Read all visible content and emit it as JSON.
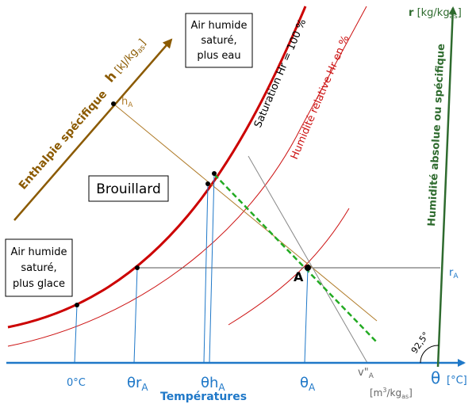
{
  "colors": {
    "saturation": "#cc0000",
    "humidity_curves": "#cc1111",
    "temperature_axis": "#1f78c8",
    "enthalpy_axis": "#8b5a00",
    "humidity_axis": "#2e6b2e",
    "dew_line": "#22aa22",
    "volume_line": "#888888",
    "construction": "#555555"
  },
  "labels": {
    "theta": "θ",
    "theta_unit": "[°C]",
    "temperatures": "Températures",
    "zero_c": "0°C",
    "theta_r": "θr",
    "theta_r_sub": "A",
    "theta_h": "θh",
    "theta_h_sub": "A",
    "theta_a": "θ",
    "theta_a_sub": "A",
    "v_label": "v\"",
    "v_sub": "A",
    "v_unit_open": "[m",
    "v_unit_sup": "3",
    "v_unit_mid": "/kg",
    "v_unit_sub": "as",
    "v_unit_close": "]",
    "r_symbol": "r",
    "r_unit_open": "[kg/kg",
    "r_unit_sub": "as",
    "r_unit_close": "]",
    "r_a": "r",
    "r_a_sub": "A",
    "humidity_axis_title": "Humidité absolue ou spécifique",
    "h_symbol": "h",
    "h_unit_open": "[kJ/kg",
    "h_unit_sub": "as",
    "h_unit_close": "]",
    "enthalpy_title": "Enthalpie spécifique",
    "h_a": "h",
    "h_a_sub": "A",
    "saturation": "Saturation Hr = 100 %",
    "relative_humidity": "Humidité relative Hr en %",
    "point_a": "A",
    "angle": "92,5°",
    "brouillard": "Brouillard",
    "box_water_lines": [
      "Air humide",
      "saturé,",
      "plus eau"
    ],
    "box_ice_lines": [
      "Air humide",
      "saturé,",
      "plus glace"
    ]
  }
}
